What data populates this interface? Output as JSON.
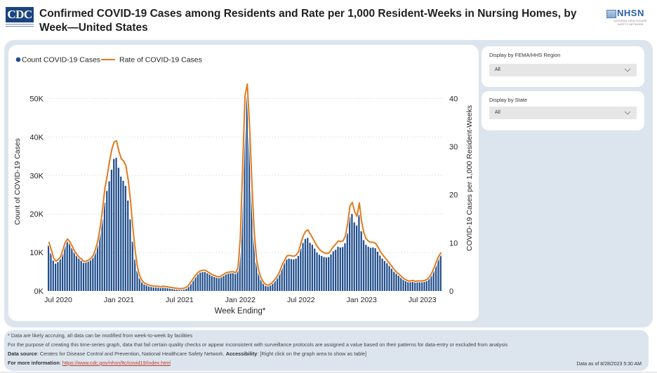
{
  "header": {
    "logo_text": "CDC",
    "title": "Confirmed COVID-19 Cases among Residents and Rate per 1,000 Resident-Weeks in Nursing Homes, by Week—United States",
    "nhsn_logo_text": "NHSN",
    "nhsn_subtitle": "NATIONAL HEALTHCARE SAFETY NETWORK"
  },
  "slicers": [
    {
      "label": "Display by FEMA/HHS Region",
      "value": "All"
    },
    {
      "label": "Display by State",
      "value": "All"
    }
  ],
  "colors": {
    "bar": "#1f4e8c",
    "line": "#e07b1f",
    "background_panel": "#dce5ee"
  },
  "chart_data": {
    "type": "bar",
    "title": "",
    "xlabel": "Week Ending*",
    "ylabel": "Count of COVID-19 Cases",
    "y2label": "COVID-19 Cases per 1,000 Resident-Weeks",
    "ylim": [
      0,
      53000
    ],
    "y2lim": [
      0,
      42.4
    ],
    "yticks": [
      "0K",
      "10K",
      "20K",
      "30K",
      "40K",
      "50K"
    ],
    "y2ticks": [
      "0",
      "10",
      "20",
      "30",
      "40"
    ],
    "xticks": [
      "Jul 2020",
      "Jan 2021",
      "Jul 2021",
      "Jan 2022",
      "Jul 2022",
      "Jan 2023",
      "Jul 2023"
    ],
    "xtick_week_index": [
      4,
      30,
      56,
      82,
      108,
      134,
      160
    ],
    "grid": true,
    "legend": {
      "position": "top-left",
      "items": [
        {
          "name": "Count COVID-19 Cases",
          "marker": "dot"
        },
        {
          "name": "Rate of COVID-19 Cases",
          "marker": "line"
        }
      ]
    },
    "series": [
      {
        "name": "Count COVID-19 Cases",
        "type": "bar",
        "axis": "left",
        "values": [
          11800,
          9800,
          7900,
          7100,
          7500,
          8300,
          10200,
          12200,
          12800,
          12300,
          11200,
          10000,
          9200,
          8500,
          7900,
          7300,
          7500,
          7700,
          8200,
          8800,
          10200,
          12300,
          15200,
          18600,
          23000,
          26000,
          28500,
          31500,
          34300,
          34600,
          32000,
          29700,
          28600,
          27300,
          23500,
          18600,
          12800,
          8200,
          5200,
          3400,
          2300,
          1800,
          1600,
          1400,
          1300,
          1200,
          1200,
          1100,
          1100,
          1200,
          1100,
          1000,
          900,
          800,
          700,
          650,
          600,
          600,
          700,
          900,
          1500,
          2300,
          3100,
          3900,
          4500,
          4800,
          4900,
          4900,
          4600,
          4300,
          3900,
          3700,
          3500,
          3400,
          3700,
          4100,
          4400,
          4600,
          4700,
          4700,
          4500,
          5500,
          13000,
          30000,
          47000,
          50500,
          40000,
          26000,
          14500,
          8000,
          5000,
          3200,
          2200,
          1600,
          1400,
          1800,
          2300,
          3000,
          3800,
          5000,
          6300,
          7400,
          8200,
          8400,
          8300,
          8200,
          8400,
          9100,
          11000,
          12500,
          13500,
          13800,
          12500,
          12000,
          11000,
          10000,
          9400,
          9100,
          8800,
          8700,
          8800,
          9500,
          10300,
          10700,
          11500,
          11300,
          11400,
          12400,
          15000,
          19200,
          20000,
          17800,
          17000,
          19800,
          15500,
          13200,
          12000,
          11500,
          11200,
          11300,
          11100,
          10200,
          9200,
          8400,
          7800,
          7200,
          6500,
          5800,
          5000,
          4500,
          4000,
          3500,
          3000,
          2700,
          2500,
          2500,
          2600,
          2400,
          2500,
          2600,
          2600,
          2700,
          2900,
          3400,
          4300,
          5500,
          7000,
          8300,
          9200
        ]
      },
      {
        "name": "Rate of COVID-19 Cases",
        "type": "line",
        "axis": "right",
        "values": [
          10.2,
          8.6,
          6.9,
          6.2,
          6.5,
          7.1,
          8.6,
          10.1,
          10.8,
          10.2,
          9.3,
          8.3,
          7.6,
          7.0,
          6.6,
          6.1,
          6.2,
          6.4,
          6.8,
          7.4,
          8.7,
          10.5,
          13.3,
          17.0,
          21.4,
          24.0,
          27.0,
          29.5,
          31.0,
          31.2,
          29.0,
          27.5,
          27.0,
          26.0,
          23.0,
          18.5,
          13.0,
          8.2,
          4.8,
          3.0,
          2.1,
          1.6,
          1.4,
          1.2,
          1.1,
          1.0,
          1.0,
          0.95,
          0.9,
          1.0,
          0.9,
          0.85,
          0.75,
          0.7,
          0.6,
          0.55,
          0.5,
          0.5,
          0.6,
          0.8,
          1.3,
          2.0,
          2.7,
          3.4,
          3.9,
          4.2,
          4.3,
          4.3,
          4.0,
          3.7,
          3.4,
          3.2,
          3.0,
          2.9,
          3.2,
          3.5,
          3.8,
          3.9,
          4.0,
          4.0,
          3.8,
          4.7,
          11.0,
          25.5,
          40.5,
          43.0,
          34.0,
          22.0,
          12.0,
          6.5,
          4.0,
          2.6,
          1.8,
          1.3,
          1.2,
          1.5,
          1.9,
          2.5,
          3.2,
          4.2,
          5.5,
          6.4,
          7.3,
          7.4,
          7.3,
          7.2,
          7.5,
          8.2,
          10.0,
          11.5,
          12.4,
          12.7,
          11.8,
          11.0,
          10.1,
          9.2,
          8.6,
          8.2,
          7.9,
          7.8,
          7.9,
          8.6,
          9.3,
          9.8,
          10.4,
          10.3,
          10.4,
          11.4,
          14.0,
          17.7,
          18.4,
          16.5,
          15.5,
          18.3,
          14.3,
          12.0,
          10.8,
          10.3,
          10.1,
          10.1,
          9.9,
          9.1,
          8.2,
          7.5,
          6.9,
          6.3,
          5.7,
          5.1,
          4.4,
          3.9,
          3.5,
          3.0,
          2.6,
          2.3,
          2.1,
          2.1,
          2.2,
          2.0,
          2.1,
          2.1,
          2.1,
          2.2,
          2.4,
          2.9,
          3.7,
          4.8,
          6.1,
          7.2,
          8.0
        ]
      }
    ]
  },
  "footer": {
    "note1": "* Data are likely accruing, all data can be modified from week-to-week by facilities",
    "note2": "For the purpose of creating this time-series graph, data that fail certain quality checks or appear inconsistent with surveillance protocols are assigned a value based on their patterns for data-entry or excluded from analysis",
    "source_label": "Data source",
    "source_text": ": Centers for Disease Control and Prevention, National Healthcare Safety Network. ",
    "accessibility_label": "Accessibility",
    "accessibility_text": ": [Right click on the graph area to show as table]",
    "more_info_label": "For more information",
    "more_info_sep": ": ",
    "more_info_link": "https://www.cdc.gov/nhsn/ltc/covid19/index.html",
    "data_as_of": "Data as of 8/28/2023 5:30 AM"
  }
}
